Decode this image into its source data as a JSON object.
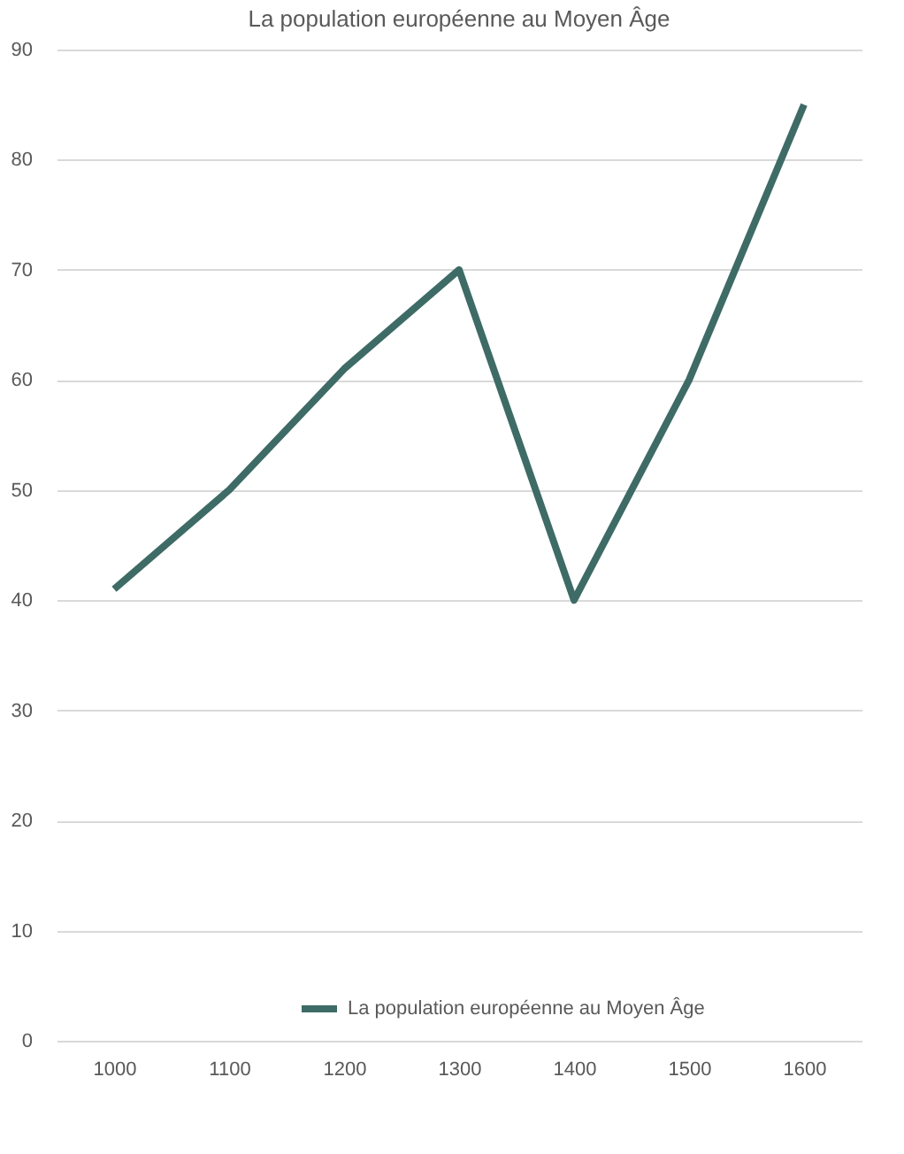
{
  "chart_data": {
    "type": "line",
    "title": "La population européenne au Moyen Âge",
    "categories": [
      "1000",
      "1100",
      "1200",
      "1300",
      "1400",
      "1500",
      "1600"
    ],
    "series": [
      {
        "name": "La population européenne au Moyen Âge",
        "color": "#3e6b66",
        "values": [
          41,
          50,
          61,
          70,
          40,
          60,
          85
        ]
      }
    ],
    "ylim": [
      0,
      90
    ],
    "yticks": [
      0,
      10,
      20,
      30,
      40,
      50,
      60,
      70,
      80,
      90
    ],
    "grid": "y",
    "legend": "bottom",
    "marker": "none",
    "line_style": "solid"
  }
}
